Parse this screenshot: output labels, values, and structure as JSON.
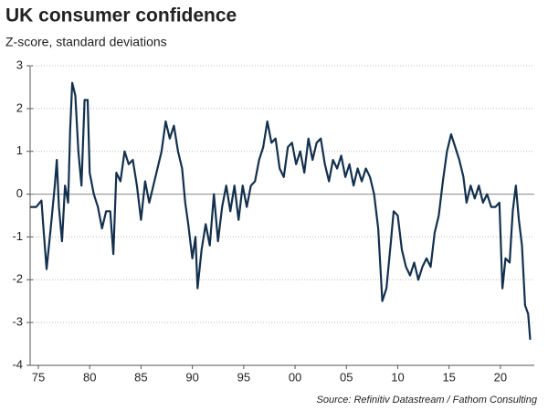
{
  "chart_data": {
    "type": "line",
    "title": "UK consumer confidence",
    "subtitle": "Z-score, standard deviations",
    "source": "Source: Refinitiv Datastream / Fathom Consulting",
    "xlim": [
      1974.2,
      2023.3
    ],
    "ylim": [
      -4,
      3
    ],
    "yticks": [
      3,
      2,
      1,
      0,
      -1,
      -2,
      -3,
      -4
    ],
    "xticks": [
      {
        "value": 1975,
        "label": "75"
      },
      {
        "value": 1980,
        "label": "80"
      },
      {
        "value": 1985,
        "label": "85"
      },
      {
        "value": 1990,
        "label": "90"
      },
      {
        "value": 1995,
        "label": "95"
      },
      {
        "value": 2000,
        "label": "00"
      },
      {
        "value": 2005,
        "label": "05"
      },
      {
        "value": 2010,
        "label": "10"
      },
      {
        "value": 2015,
        "label": "15"
      },
      {
        "value": 2020,
        "label": "20"
      }
    ],
    "grid": true,
    "series": [
      {
        "color": "#13304d",
        "x": [
          1974.2,
          1974.8,
          1975.3,
          1975.5,
          1975.8,
          1976.2,
          1976.6,
          1976.8,
          1977.0,
          1977.3,
          1977.6,
          1977.9,
          1978.1,
          1978.3,
          1978.6,
          1978.9,
          1979.2,
          1979.5,
          1979.8,
          1980.0,
          1980.4,
          1980.8,
          1981.2,
          1981.6,
          1982.0,
          1982.3,
          1982.6,
          1983.0,
          1983.4,
          1983.8,
          1984.2,
          1984.6,
          1985.0,
          1985.4,
          1985.8,
          1986.2,
          1986.6,
          1987.0,
          1987.4,
          1987.8,
          1988.2,
          1988.6,
          1989.0,
          1989.3,
          1989.6,
          1990.0,
          1990.3,
          1990.5,
          1990.9,
          1991.3,
          1991.7,
          1992.1,
          1992.5,
          1992.9,
          1993.3,
          1993.7,
          1994.1,
          1994.5,
          1994.9,
          1995.3,
          1995.7,
          1996.1,
          1996.5,
          1996.9,
          1997.3,
          1997.7,
          1998.1,
          1998.5,
          1998.9,
          1999.3,
          1999.7,
          2000.1,
          2000.5,
          2000.9,
          2001.3,
          2001.7,
          2002.1,
          2002.5,
          2002.9,
          2003.3,
          2003.7,
          2004.1,
          2004.5,
          2004.9,
          2005.3,
          2005.7,
          2006.1,
          2006.5,
          2006.9,
          2007.3,
          2007.7,
          2008.1,
          2008.5,
          2008.9,
          2009.3,
          2009.6,
          2010.0,
          2010.4,
          2010.8,
          2011.2,
          2011.6,
          2012.0,
          2012.4,
          2012.8,
          2013.2,
          2013.6,
          2014.0,
          2014.4,
          2014.8,
          2015.2,
          2015.6,
          2016.0,
          2016.4,
          2016.7,
          2017.1,
          2017.5,
          2017.9,
          2018.3,
          2018.7,
          2019.1,
          2019.5,
          2019.9,
          2020.2,
          2020.5,
          2020.9,
          2021.2,
          2021.5,
          2021.8,
          2022.1,
          2022.4,
          2022.7,
          2022.9
        ],
        "values": [
          -0.3,
          -0.3,
          -0.15,
          -0.8,
          -1.75,
          -0.8,
          0.2,
          0.8,
          -0.3,
          -1.1,
          0.2,
          -0.2,
          1.5,
          2.6,
          2.3,
          1.0,
          0.2,
          2.2,
          2.2,
          0.5,
          0.0,
          -0.3,
          -0.8,
          -0.4,
          -0.4,
          -1.4,
          0.5,
          0.3,
          1.0,
          0.7,
          0.8,
          0.2,
          -0.6,
          0.3,
          -0.2,
          0.2,
          0.6,
          1.0,
          1.7,
          1.3,
          1.6,
          1.0,
          0.6,
          -0.2,
          -0.7,
          -1.5,
          -1.0,
          -2.2,
          -1.3,
          -0.7,
          -1.2,
          0.0,
          -1.1,
          -0.3,
          0.2,
          -0.4,
          0.2,
          -0.6,
          0.2,
          -0.3,
          0.2,
          0.3,
          0.8,
          1.1,
          1.7,
          1.2,
          1.3,
          0.6,
          0.4,
          1.1,
          1.2,
          0.7,
          1.0,
          0.5,
          1.3,
          0.8,
          1.2,
          1.3,
          0.7,
          0.3,
          0.8,
          0.6,
          0.9,
          0.4,
          0.7,
          0.2,
          0.6,
          0.3,
          0.6,
          0.4,
          0.0,
          -0.8,
          -2.5,
          -2.2,
          -1.2,
          -0.4,
          -0.5,
          -1.3,
          -1.7,
          -1.9,
          -1.6,
          -2.0,
          -1.7,
          -1.5,
          -1.7,
          -0.9,
          -0.5,
          0.3,
          1.0,
          1.4,
          1.1,
          0.8,
          0.4,
          -0.2,
          0.2,
          -0.1,
          0.2,
          -0.2,
          0.0,
          -0.3,
          -0.3,
          -0.2,
          -2.2,
          -1.5,
          -1.6,
          -0.4,
          0.2,
          -0.6,
          -1.2,
          -2.6,
          -2.8,
          -3.4
        ]
      }
    ]
  }
}
